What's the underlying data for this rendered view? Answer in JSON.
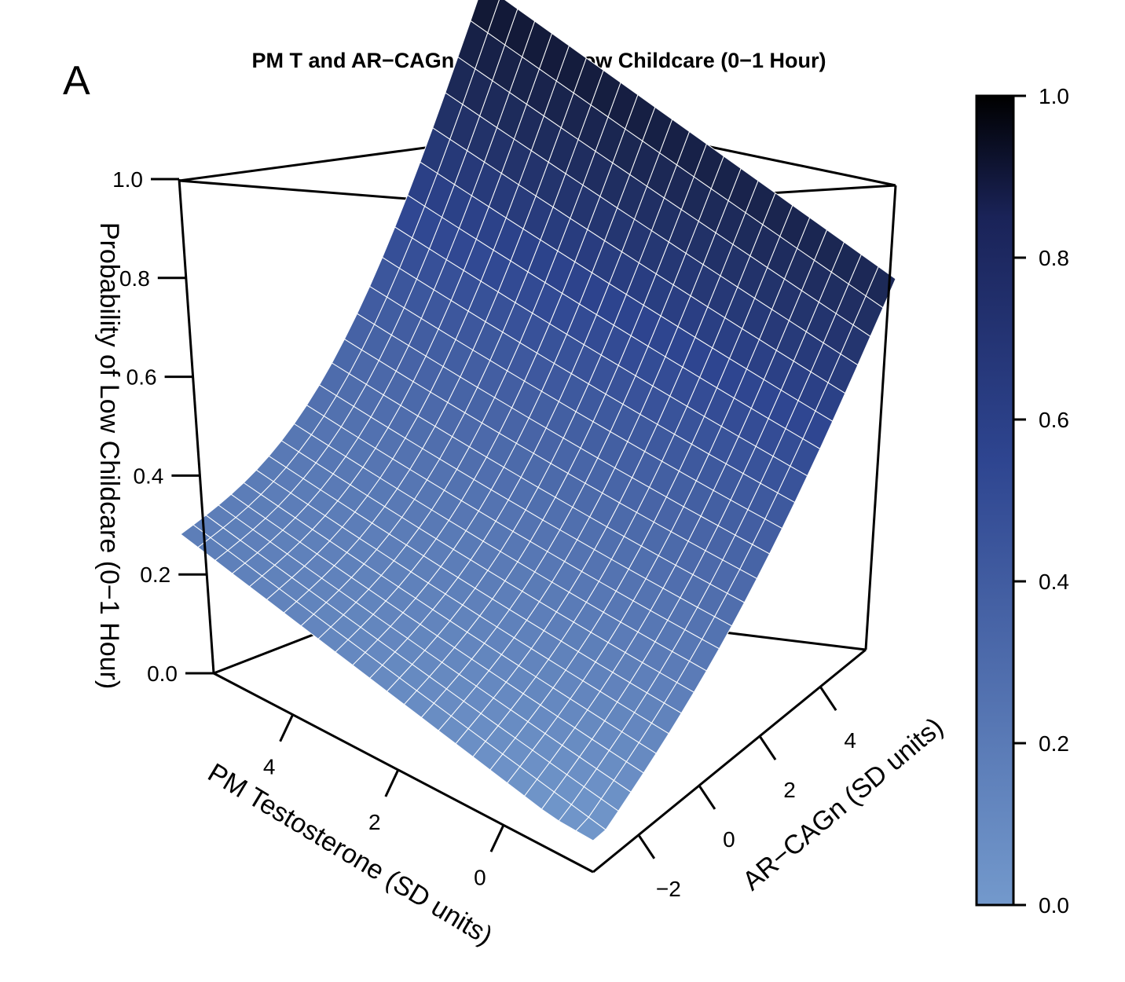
{
  "panel_label": "A",
  "chart_data": {
    "type": "surface3d",
    "title": "PM T and AR−CAGn Predicting Low Childcare (0−1 Hour)",
    "xlabel": "PM Testosterone (SD units)",
    "ylabel": "AR−CAGn (SD units)",
    "zlabel": "Probability of Low Childcare (0−1 Hour)",
    "x_ticks": [
      "0",
      "2",
      "4"
    ],
    "y_ticks": [
      "−2",
      "0",
      "2",
      "4"
    ],
    "z_ticks": [
      "0.0",
      "0.2",
      "0.4",
      "0.6",
      "0.8",
      "1.0"
    ],
    "xlim": [
      -1.7,
      5.5
    ],
    "ylim": [
      -3.5,
      5.5
    ],
    "zlim": [
      0,
      1
    ],
    "surface_corners": {
      "pmT_min_arcag_min": 0.0,
      "pmT_min_arcag_max": 0.85,
      "pmT_max_arcag_min": 0.2,
      "pmT_max_arcag_max": 1.0
    },
    "colorbar": {
      "ticks": [
        "0.0",
        "0.2",
        "0.4",
        "0.6",
        "0.8",
        "1.0"
      ],
      "range": [
        0,
        1
      ],
      "color_low": "#7399cc",
      "color_mid": "#2e4590",
      "color_high": "#000000"
    },
    "grid": false
  }
}
